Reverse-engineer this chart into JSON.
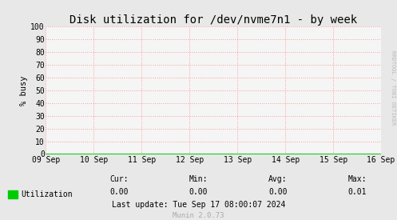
{
  "title": "Disk utilization for /dev/nvme7n1 - by week",
  "ylabel": "% busy",
  "bg_color": "#e8e8e8",
  "plot_bg_color": "#f5f5f5",
  "grid_color": "#ff9999",
  "line_color": "#00cc00",
  "yticks": [
    0,
    10,
    20,
    30,
    40,
    50,
    60,
    70,
    80,
    90,
    100
  ],
  "ylim": [
    0,
    100
  ],
  "xtick_labels": [
    "09 Sep",
    "10 Sep",
    "11 Sep",
    "12 Sep",
    "13 Sep",
    "14 Sep",
    "15 Sep",
    "16 Sep"
  ],
  "legend_label": "Utilization",
  "legend_color": "#00cc00",
  "cur_label": "Cur:",
  "cur_val": "0.00",
  "min_label": "Min:",
  "min_val": "0.00",
  "avg_label": "Avg:",
  "avg_val": "0.00",
  "max_label": "Max:",
  "max_val": "0.01",
  "last_update": "Last update: Tue Sep 17 08:00:07 2024",
  "munin_version": "Munin 2.0.73",
  "watermark": "RRDTOOL / TOBI OETIKER",
  "title_fontsize": 10,
  "axis_label_fontsize": 7.5,
  "tick_fontsize": 7,
  "small_fontsize": 7,
  "watermark_fontsize": 5
}
